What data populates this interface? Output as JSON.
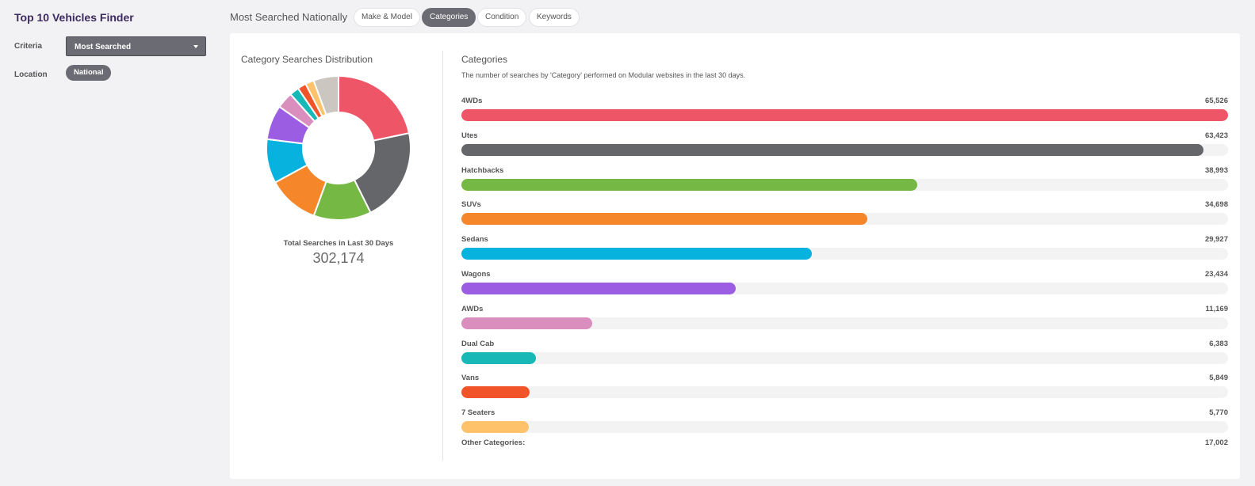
{
  "sidebar": {
    "title": "Top 10 Vehicles Finder",
    "criteria_label": "Criteria",
    "criteria_value": "Most Searched",
    "location_label": "Location",
    "location_value": "National"
  },
  "header": {
    "title": "Most Searched Nationally",
    "tabs": [
      {
        "label": "Make & Model",
        "active": false
      },
      {
        "label": "Categories",
        "active": true
      },
      {
        "label": "Condition",
        "active": false
      },
      {
        "label": "Keywords",
        "active": false
      }
    ]
  },
  "pie": {
    "title": "Category Searches Distribution",
    "total_label": "Total Searches in Last 30 Days",
    "total_value": "302,174"
  },
  "categories": {
    "title": "Categories",
    "description": "The number of searches by 'Category' performed on Modular websites in the last 30 days.",
    "other_label": "Other Categories:",
    "other_value": "17,002",
    "other_color": "#cbc6bf"
  },
  "chart_data": {
    "type": "bar",
    "categories": [
      "4WDs",
      "Utes",
      "Hatchbacks",
      "SUVs",
      "Sedans",
      "Wagons",
      "AWDs",
      "Dual Cab",
      "Vans",
      "7 Seaters"
    ],
    "values": [
      65526,
      63423,
      38993,
      34698,
      29927,
      23434,
      11169,
      6383,
      5849,
      5770
    ],
    "value_labels": [
      "65,526",
      "63,423",
      "38,993",
      "34,698",
      "29,927",
      "23,434",
      "11,169",
      "6,383",
      "5,849",
      "5,770"
    ],
    "colors": [
      "#ee5566",
      "#64666a",
      "#76b844",
      "#f5862a",
      "#07b3de",
      "#9b5ee2",
      "#d98ebe",
      "#17b8b6",
      "#f2542a",
      "#fdc26a"
    ],
    "other": 17002,
    "total": 302174
  }
}
